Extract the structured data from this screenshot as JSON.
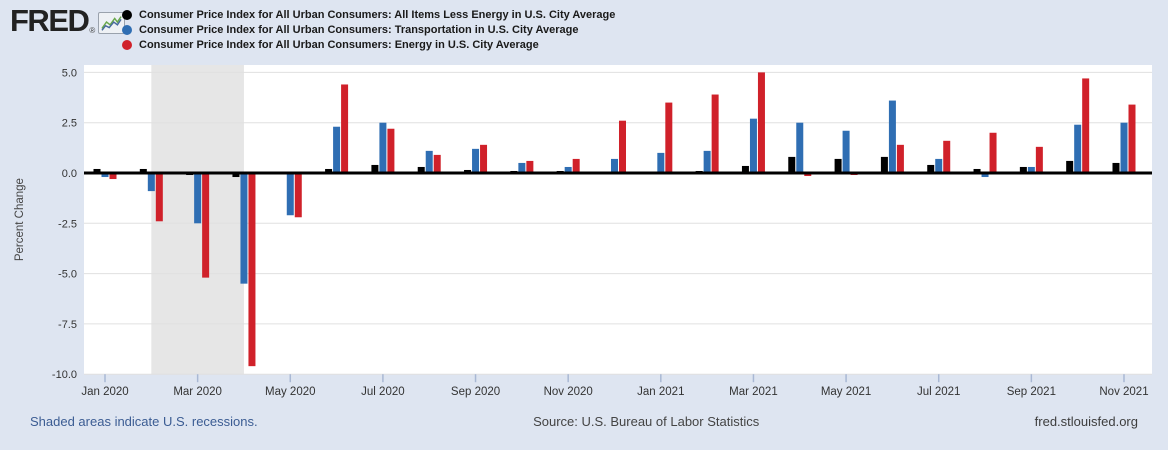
{
  "header": {
    "logo_text": "FRED",
    "registered": "®"
  },
  "footer": {
    "recession_note": "Shaded areas indicate U.S. recessions.",
    "source": "Source: U.S. Bureau of Labor Statistics",
    "site": "fred.stlouisfed.org"
  },
  "colors": {
    "page_bg": "#dee5f1",
    "plot_bg": "#ffffff",
    "recession_band": "#e6e6e6",
    "gridline": "#e0e0e0",
    "zero_line": "#000000",
    "tick": "#a9b8d4",
    "axis_label": "#333333",
    "series_black": "#000000",
    "series_blue": "#2f6eb3",
    "series_red": "#d0212a"
  },
  "chart_data": {
    "type": "bar",
    "title": "",
    "ylabel": "Percent Change",
    "xlabel": "",
    "ylim": [
      -10.0,
      5.0
    ],
    "yticks": [
      5.0,
      2.5,
      0.0,
      -2.5,
      -5.0,
      -7.5,
      -10.0
    ],
    "grid": true,
    "legend_position": "top-left",
    "recession_band": {
      "from": "Feb 2020",
      "to": "Apr 2020"
    },
    "categories": [
      "Jan 2020",
      "Feb 2020",
      "Mar 2020",
      "Apr 2020",
      "May 2020",
      "Jun 2020",
      "Jul 2020",
      "Aug 2020",
      "Sep 2020",
      "Oct 2020",
      "Nov 2020",
      "Dec 2020",
      "Jan 2021",
      "Feb 2021",
      "Mar 2021",
      "Apr 2021",
      "May 2021",
      "Jun 2021",
      "Jul 2021",
      "Aug 2021",
      "Sep 2021",
      "Oct 2021",
      "Nov 2021"
    ],
    "x_tick_labels": [
      "Jan 2020",
      "Mar 2020",
      "May 2020",
      "Jul 2020",
      "Sep 2020",
      "Nov 2020",
      "Jan 2021",
      "Mar 2021",
      "May 2021",
      "Jul 2021",
      "Sep 2021",
      "Nov 2021"
    ],
    "series": [
      {
        "name": "Consumer Price Index for All Urban Consumers: All Items Less Energy in U.S. City Average",
        "color": "#000000",
        "values": [
          0.2,
          0.2,
          -0.1,
          -0.2,
          0.0,
          0.2,
          0.4,
          0.3,
          0.15,
          0.1,
          0.1,
          0.0,
          0.0,
          0.1,
          0.35,
          0.8,
          0.7,
          0.8,
          0.4,
          0.2,
          0.3,
          0.6,
          0.5
        ]
      },
      {
        "name": "Consumer Price Index for All Urban Consumers: Transportation in U.S. City Average",
        "color": "#2f6eb3",
        "values": [
          -0.2,
          -0.9,
          -2.5,
          -5.5,
          -2.1,
          2.3,
          2.5,
          1.1,
          1.2,
          0.5,
          0.3,
          0.7,
          1.0,
          1.1,
          2.7,
          2.5,
          2.1,
          3.6,
          0.7,
          -0.2,
          0.3,
          2.4,
          2.5
        ]
      },
      {
        "name": "Consumer Price Index for All Urban Consumers: Energy in U.S. City Average",
        "color": "#d0212a",
        "values": [
          -0.3,
          -2.4,
          -5.2,
          -9.6,
          -2.2,
          4.4,
          2.2,
          0.9,
          1.4,
          0.6,
          0.7,
          2.6,
          3.5,
          3.9,
          5.0,
          -0.15,
          -0.1,
          1.4,
          1.6,
          2.0,
          1.3,
          4.7,
          3.4
        ]
      }
    ]
  }
}
